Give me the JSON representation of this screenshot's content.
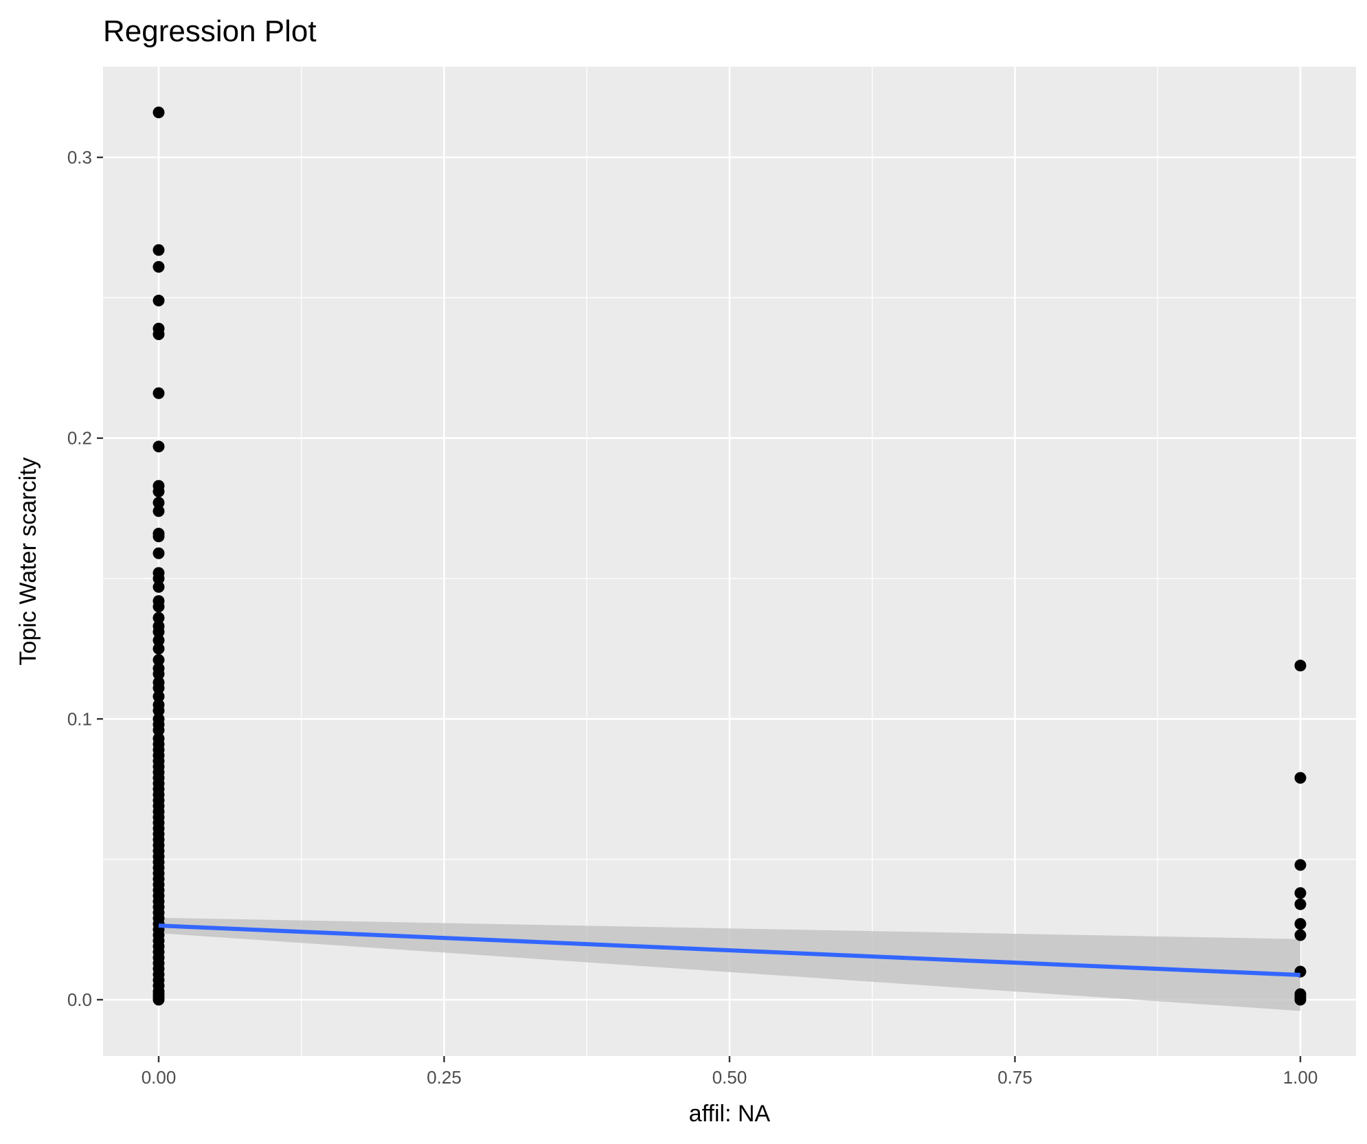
{
  "chart_data": {
    "type": "scatter",
    "title": "Regression Plot",
    "xlabel": "affil: NA",
    "ylabel": "Topic Water scarcity",
    "xlim": [
      -0.05,
      1.05
    ],
    "ylim": [
      -0.02,
      0.33
    ],
    "x_ticks": [
      0.0,
      0.25,
      0.5,
      0.75,
      1.0
    ],
    "x_tick_labels": [
      "0.00",
      "0.25",
      "0.50",
      "0.75",
      "1.00"
    ],
    "y_ticks": [
      0.0,
      0.1,
      0.2,
      0.3
    ],
    "y_tick_labels": [
      "0.0",
      "0.1",
      "0.2",
      "0.3"
    ],
    "grid": true,
    "colors": {
      "panel_background": "#ebebeb",
      "grid_major": "#ffffff",
      "points": "#000000",
      "fit_line": "#3366ff",
      "confidence_band": "#bfbfbf"
    },
    "series": [
      {
        "group": 0,
        "x": 0.0,
        "y": [
          0.316,
          0.267,
          0.261,
          0.249,
          0.239,
          0.237,
          0.216,
          0.197,
          0.183,
          0.181,
          0.177,
          0.174,
          0.166,
          0.165,
          0.159,
          0.152,
          0.15,
          0.147,
          0.142,
          0.14,
          0.136,
          0.133,
          0.131,
          0.128,
          0.125,
          0.121,
          0.118,
          0.116,
          0.113,
          0.111,
          0.108,
          0.105,
          0.103,
          0.1,
          0.098,
          0.096,
          0.093,
          0.091,
          0.089,
          0.087,
          0.085,
          0.083,
          0.081,
          0.079,
          0.077,
          0.075,
          0.073,
          0.071,
          0.069,
          0.067,
          0.065,
          0.063,
          0.061,
          0.059,
          0.057,
          0.055,
          0.053,
          0.051,
          0.049,
          0.047,
          0.045,
          0.043,
          0.041,
          0.039,
          0.037,
          0.035,
          0.033,
          0.031,
          0.029,
          0.027,
          0.025,
          0.023,
          0.021,
          0.019,
          0.017,
          0.015,
          0.013,
          0.011,
          0.009,
          0.007,
          0.005,
          0.003,
          0.002,
          0.001,
          0.0
        ]
      },
      {
        "group": 1,
        "x": 1.0,
        "y": [
          0.119,
          0.079,
          0.048,
          0.038,
          0.034,
          0.027,
          0.023,
          0.01,
          0.002,
          0.001,
          0.0
        ]
      }
    ],
    "fit": {
      "method": "lm",
      "x": [
        0.0,
        1.0
      ],
      "y": [
        0.0264,
        0.0088
      ],
      "band_lower": [
        0.0237,
        -0.004
      ],
      "band_upper": [
        0.0292,
        0.0216
      ]
    }
  }
}
